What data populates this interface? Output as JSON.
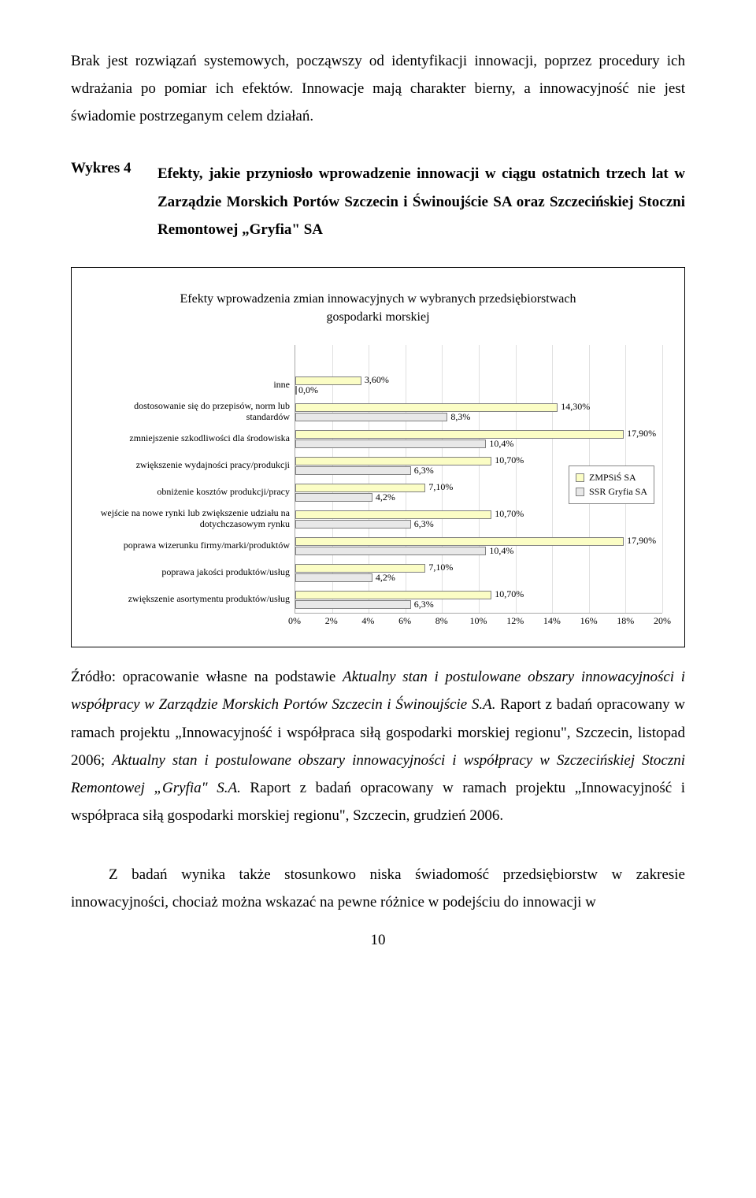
{
  "intro_text": "Brak jest rozwiązań systemowych, począwszy od identyfikacji innowacji, poprzez procedury ich wdrażania po pomiar ich efektów. Innowacje mają charakter bierny, a innowacyjność nie jest świadomie postrzeganym celem działań.",
  "figure_label": "Wykres 4",
  "figure_title": "Efekty, jakie przyniosło wprowadzenie innowacji w ciągu ostatnich trzech lat w Zarządzie Morskich Portów Szczecin i Świnoujście SA oraz Szczecińskiej Stoczni Remontowej „Gryfia\" SA",
  "chart": {
    "type": "grouped-horizontal-bar",
    "heading_l1": "Efekty wprowadzenia zmian innowacyjnych w wybranych przedsiębiorstwach",
    "heading_l2": "gospodarki morskiej",
    "xlim_min": 0,
    "xlim_max": 20,
    "xtick_step_pct": 2,
    "xtick_labels": [
      "0%",
      "2%",
      "4%",
      "6%",
      "8%",
      "10%",
      "12%",
      "14%",
      "16%",
      "18%",
      "20%"
    ],
    "grid_color": "#e0e0e0",
    "axis_color": "#a8a8a8",
    "bar_border_color": "#808080",
    "legend": {
      "series_a": {
        "label": "ZMPSiŚ SA",
        "color": "#fbfdc5"
      },
      "series_b": {
        "label": "SSR Gryfia SA",
        "color": "#e8e8e8"
      }
    },
    "rows": [
      {
        "label": "inne",
        "a": {
          "v": 3.6,
          "txt": "3,60%"
        },
        "b": {
          "v": 0.0,
          "txt": "0,0%"
        }
      },
      {
        "label": "dostosowanie się do przepisów, norm lub standardów",
        "a": {
          "v": 14.3,
          "txt": "14,30%"
        },
        "b": {
          "v": 8.3,
          "txt": "8,3%"
        }
      },
      {
        "label": "zmniejszenie szkodliwości dla środowiska",
        "a": {
          "v": 17.9,
          "txt": "17,90%"
        },
        "b": {
          "v": 10.4,
          "txt": "10,4%"
        }
      },
      {
        "label": "zwiększenie wydajności pracy/produkcji",
        "a": {
          "v": 10.7,
          "txt": "10,70%"
        },
        "b": {
          "v": 6.3,
          "txt": "6,3%"
        }
      },
      {
        "label": "obniżenie kosztów produkcji/pracy",
        "a": {
          "v": 7.1,
          "txt": "7,10%"
        },
        "b": {
          "v": 4.2,
          "txt": "4,2%"
        }
      },
      {
        "label": "wejście na nowe rynki lub zwiększenie udziału na dotychczasowym rynku",
        "a": {
          "v": 10.7,
          "txt": "10,70%"
        },
        "b": {
          "v": 6.3,
          "txt": "6,3%"
        }
      },
      {
        "label": "poprawa wizerunku firmy/marki/produktów",
        "a": {
          "v": 17.9,
          "txt": "17,90%"
        },
        "b": {
          "v": 10.4,
          "txt": "10,4%"
        }
      },
      {
        "label": "poprawa jakości produktów/usług",
        "a": {
          "v": 7.1,
          "txt": "7,10%"
        },
        "b": {
          "v": 4.2,
          "txt": "4,2%"
        }
      },
      {
        "label": "zwiększenie asortymentu produktów/usług",
        "a": {
          "v": 10.7,
          "txt": "10,70%"
        },
        "b": {
          "v": 6.3,
          "txt": "6,3%"
        }
      }
    ]
  },
  "source_lead": "Źródło: ",
  "source_p1": "opracowanie własne na podstawie ",
  "source_it1": "Aktualny stan i postulowane obszary innowacyjności i współpracy w Zarządzie Morskich Portów Szczecin i Świnoujście S.A.",
  "source_p2": " Raport z badań opracowany w ramach projektu „Innowacyjność i współpraca siłą gospodarki morskiej regionu\", Szczecin, listopad 2006; ",
  "source_it2": "Aktualny stan i postulowane obszary innowacyjności i współpracy w Szczecińskiej Stoczni Remontowej „Gryfia\" S.A.",
  "source_p3": " Raport z badań opracowany w ramach projektu „Innowacyjność i współpraca siłą gospodarki morskiej regionu\", Szczecin, grudzień 2006.",
  "closing_text": "Z badań wynika także stosunkowo niska świadomość przedsiębiorstw w zakresie innowacyjności, chociaż można wskazać na pewne różnice w podejściu do innowacji w",
  "page_number": "10"
}
